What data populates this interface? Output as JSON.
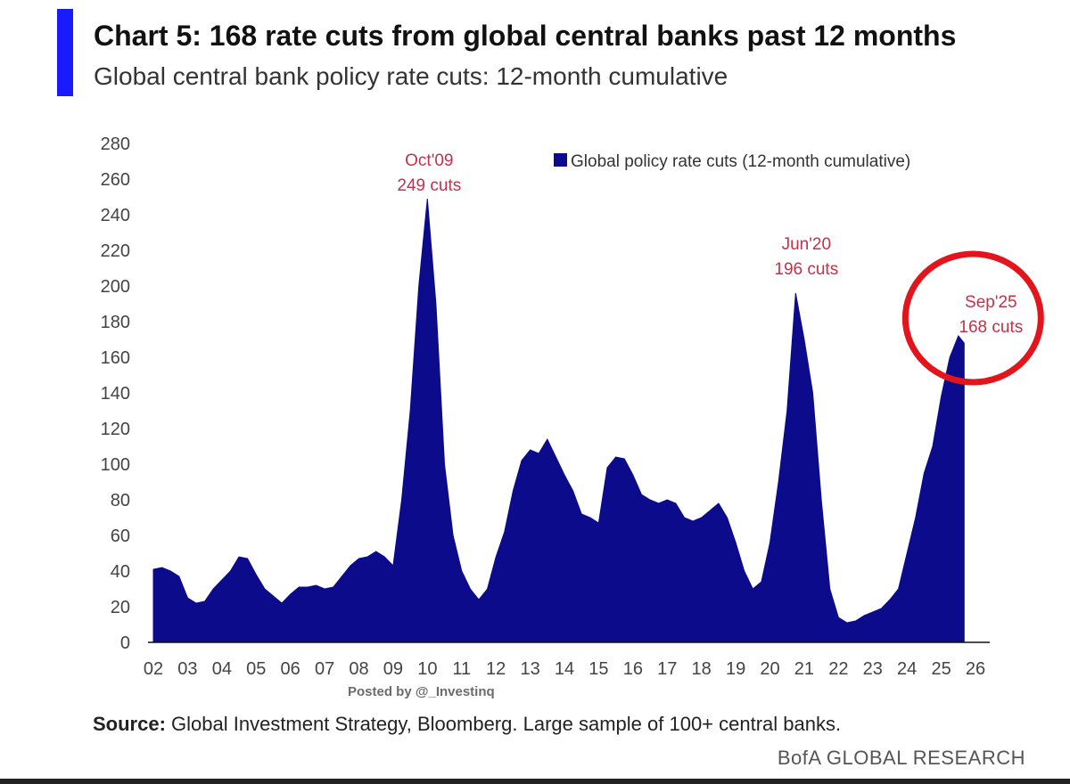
{
  "header": {
    "title": "Chart 5: 168 rate cuts from global central banks past 12 months",
    "subtitle": "Global central bank policy rate cuts: 12-month cumulative"
  },
  "chart_data": {
    "type": "area",
    "series": [
      {
        "name": "Global policy rate cuts (12-month cumulative)",
        "color": "#0b0b8c",
        "x": [
          2002.0,
          2002.25,
          2002.5,
          2002.75,
          2003.0,
          2003.25,
          2003.5,
          2003.75,
          2004.0,
          2004.25,
          2004.5,
          2004.75,
          2005.0,
          2005.25,
          2005.5,
          2005.75,
          2006.0,
          2006.25,
          2006.5,
          2006.75,
          2007.0,
          2007.25,
          2007.5,
          2007.75,
          2008.0,
          2008.25,
          2008.5,
          2008.75,
          2009.0,
          2009.25,
          2009.5,
          2009.75,
          2010.0,
          2010.25,
          2010.5,
          2010.75,
          2011.0,
          2011.25,
          2011.5,
          2011.75,
          2012.0,
          2012.25,
          2012.5,
          2012.75,
          2013.0,
          2013.25,
          2013.5,
          2013.75,
          2014.0,
          2014.25,
          2014.5,
          2014.75,
          2015.0,
          2015.25,
          2015.5,
          2015.75,
          2016.0,
          2016.25,
          2016.5,
          2016.75,
          2017.0,
          2017.25,
          2017.5,
          2017.75,
          2018.0,
          2018.25,
          2018.5,
          2018.75,
          2019.0,
          2019.25,
          2019.5,
          2019.75,
          2020.0,
          2020.25,
          2020.5,
          2020.75,
          2021.0,
          2021.25,
          2021.5,
          2021.75,
          2022.0,
          2022.25,
          2022.5,
          2022.75,
          2023.0,
          2023.25,
          2023.5,
          2023.75,
          2024.0,
          2024.25,
          2024.5,
          2024.75,
          2025.0,
          2025.25,
          2025.5,
          2025.67
        ],
        "values": [
          41,
          42,
          40,
          37,
          25,
          22,
          23,
          30,
          35,
          40,
          48,
          47,
          38,
          30,
          26,
          22,
          27,
          31,
          31,
          32,
          30,
          31,
          37,
          43,
          47,
          48,
          51,
          48,
          43,
          80,
          130,
          200,
          249,
          190,
          100,
          60,
          40,
          30,
          24,
          30,
          48,
          62,
          85,
          102,
          108,
          106,
          114,
          104,
          94,
          85,
          72,
          70,
          67,
          98,
          104,
          103,
          94,
          83,
          80,
          78,
          80,
          78,
          70,
          68,
          70,
          74,
          78,
          70,
          56,
          40,
          30,
          34,
          56,
          90,
          130,
          196,
          170,
          140,
          80,
          30,
          14,
          11,
          12,
          15,
          17,
          19,
          24,
          30,
          50,
          70,
          95,
          110,
          138,
          160,
          172,
          168
        ]
      }
    ],
    "xlim": [
      2002,
      2026
    ],
    "ylim": [
      0,
      280
    ],
    "x_tick_labels": [
      "02",
      "03",
      "04",
      "05",
      "06",
      "07",
      "08",
      "09",
      "10",
      "11",
      "12",
      "13",
      "14",
      "15",
      "16",
      "17",
      "18",
      "19",
      "20",
      "21",
      "22",
      "23",
      "24",
      "25",
      "26"
    ],
    "y_ticks": [
      0,
      20,
      40,
      60,
      80,
      100,
      120,
      140,
      160,
      180,
      200,
      220,
      240,
      260,
      280
    ],
    "legend": {
      "label": "Global policy rate cuts (12-month cumulative)",
      "position": "top-right"
    },
    "grid": false,
    "annotations": [
      {
        "x": 2010.0,
        "y": 249,
        "line1": "Oct'09",
        "line2": "249 cuts"
      },
      {
        "x": 2020.75,
        "y": 196,
        "line1": "Jun'20",
        "line2": "196 cuts"
      },
      {
        "x": 2025.67,
        "y": 168,
        "line1": "Sep'25",
        "line2": "168 cuts"
      }
    ],
    "highlight_color": "#e3151c"
  },
  "watermark": "Posted by @_Investinq",
  "source": {
    "label": "Source:",
    "text": " Global Investment Strategy, Bloomberg. Large sample of 100+ central banks."
  },
  "brand": "BofA GLOBAL RESEARCH"
}
